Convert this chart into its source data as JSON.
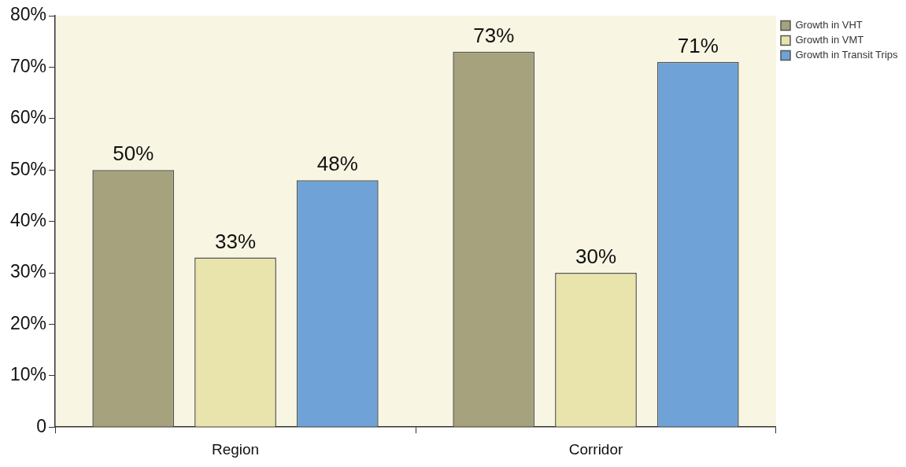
{
  "chart_data": {
    "type": "bar",
    "categories": [
      "Region",
      "Corridor"
    ],
    "series": [
      {
        "name": "Growth in VHT",
        "color": "#a5a27d",
        "values": [
          50,
          73
        ],
        "value_labels": [
          "50%",
          "73%"
        ]
      },
      {
        "name": "Growth in VMT",
        "color": "#e8e4ab",
        "values": [
          33,
          30
        ],
        "value_labels": [
          "33%",
          "30%"
        ]
      },
      {
        "name": "Growth in Transit Trips",
        "color": "#6fa3d8",
        "values": [
          48,
          71
        ],
        "value_labels": [
          "48%",
          "71%"
        ]
      }
    ],
    "ylim": [
      0,
      80
    ],
    "yticks": [
      {
        "value": 0,
        "label": "0"
      },
      {
        "value": 10,
        "label": "10%"
      },
      {
        "value": 20,
        "label": "20%"
      },
      {
        "value": 30,
        "label": "30%"
      },
      {
        "value": 40,
        "label": "40%"
      },
      {
        "value": 50,
        "label": "50%"
      },
      {
        "value": 60,
        "label": "60%"
      },
      {
        "value": 70,
        "label": "70%"
      },
      {
        "value": 80,
        "label": "80%"
      }
    ],
    "grid": false,
    "legend": "top right"
  }
}
